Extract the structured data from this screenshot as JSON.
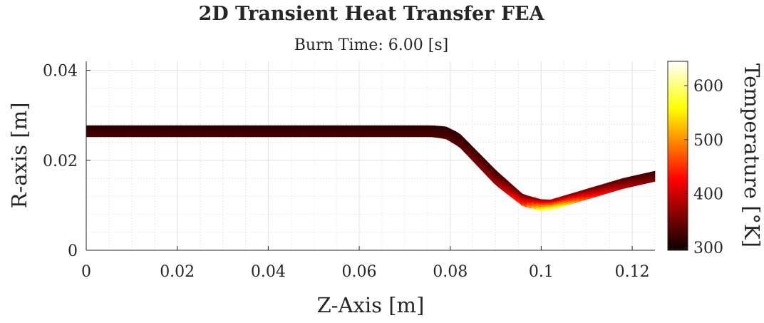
{
  "chart_data": {
    "type": "heatmap",
    "title": "2D Transient Heat Transfer FEA",
    "subtitle": "Burn Time: 6.00 [s]",
    "xlabel": "Z-Axis [m]",
    "ylabel": "R-axis [m]",
    "xlim": [
      0,
      0.125
    ],
    "ylim": [
      0,
      0.042
    ],
    "x_ticks": [
      "0",
      "0.02",
      "0.04",
      "0.06",
      "0.08",
      "0.1",
      "0.12"
    ],
    "x_tick_values": [
      0,
      0.02,
      0.04,
      0.06,
      0.08,
      0.1,
      0.12
    ],
    "y_ticks": [
      "0",
      "0.02",
      "0.04"
    ],
    "y_tick_values": [
      0,
      0.02,
      0.04
    ],
    "grid": true,
    "minor_grid": true,
    "colorbar": {
      "label": "Temperature [°K]",
      "colormap": "hot",
      "limits": [
        295,
        645
      ],
      "ticks": [
        "300",
        "400",
        "500",
        "600"
      ],
      "tick_values": [
        300,
        400,
        500,
        600
      ]
    },
    "wall_profile": {
      "z": [
        0,
        0.02,
        0.04,
        0.06,
        0.076,
        0.079,
        0.082,
        0.09,
        0.096,
        0.1,
        0.102,
        0.11,
        0.118,
        0.125
      ],
      "r_inner": [
        0.0252,
        0.0252,
        0.0252,
        0.0252,
        0.0252,
        0.0248,
        0.023,
        0.0145,
        0.0098,
        0.0088,
        0.0089,
        0.0113,
        0.0137,
        0.0153
      ],
      "r_outer": [
        0.0277,
        0.0277,
        0.0277,
        0.0277,
        0.0277,
        0.0275,
        0.026,
        0.0178,
        0.0124,
        0.0113,
        0.0112,
        0.0136,
        0.016,
        0.0176
      ],
      "t_inner": [
        330,
        330,
        330,
        330,
        332,
        334,
        340,
        380,
        470,
        600,
        630,
        470,
        395,
        360
      ],
      "t_outer": [
        310,
        310,
        310,
        310,
        311,
        312,
        315,
        320,
        340,
        360,
        365,
        345,
        330,
        320
      ]
    }
  }
}
